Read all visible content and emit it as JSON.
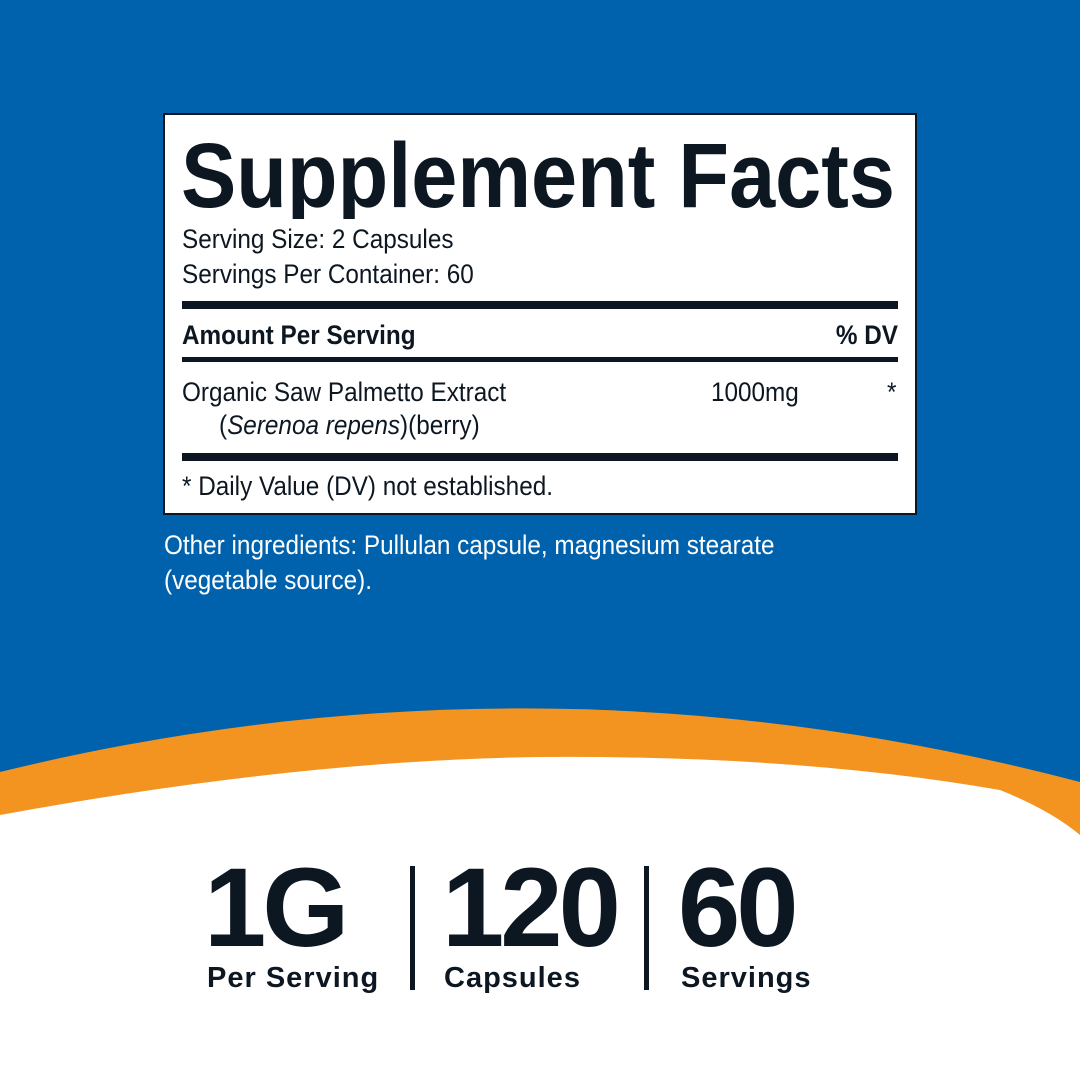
{
  "colors": {
    "background_blue": "#0062AD",
    "accent_orange": "#F39420",
    "text_dark": "#0D1722",
    "white": "#FFFFFF"
  },
  "facts": {
    "title": "Supplement Facts",
    "serving_size": "Serving Size: 2 Capsules",
    "servings_per_container": "Servings Per Container: 60",
    "amount_header": "Amount Per Serving",
    "dv_header": "% DV",
    "ingredient": {
      "name": "Organic Saw Palmetto Extract",
      "paren_open": "(",
      "latin": "Serenoa repens",
      "detail": ")(berry)",
      "amount": "1000mg",
      "dv": "*"
    },
    "footnote": "* Daily Value (DV) not established."
  },
  "other_ingredients": {
    "line1": "Other ingredients: Pullulan capsule, magnesium stearate",
    "line2": "(vegetable source)."
  },
  "stats": [
    {
      "value": "1G",
      "label": "Per Serving"
    },
    {
      "value": "120",
      "label": "Capsules"
    },
    {
      "value": "60",
      "label": "Servings"
    }
  ]
}
